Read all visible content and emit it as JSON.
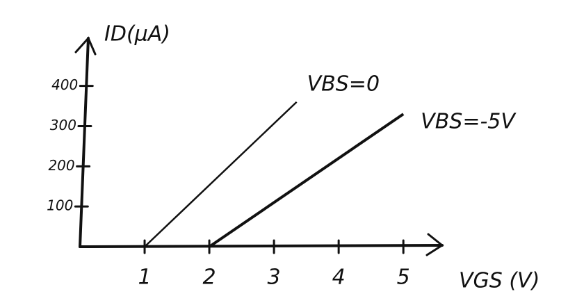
{
  "chart_data": {
    "type": "line",
    "x_label": "VGS (V)",
    "y_label": "ID(μA)",
    "series": [
      {
        "name": "VBS=0",
        "color": "#111111",
        "x": [
          1,
          3.35
        ],
        "values": [
          0,
          360
        ]
      },
      {
        "name": "VBS=-5V",
        "color": "#111111",
        "x": [
          2,
          5
        ],
        "values": [
          0,
          330
        ]
      }
    ],
    "xlim": [
      0,
      5.6
    ],
    "ylim": [
      0,
      510
    ],
    "xticks": [
      1,
      2,
      3,
      4,
      5
    ],
    "yticks": [
      100,
      200,
      300,
      400
    ]
  }
}
